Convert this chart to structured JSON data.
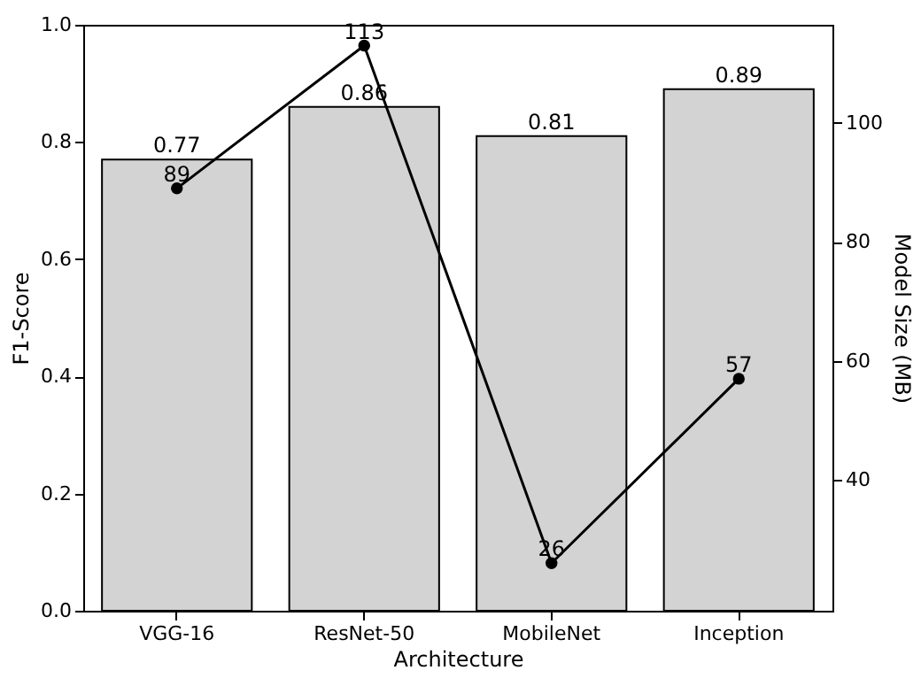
{
  "chart_data": {
    "type": "bar",
    "categories": [
      "VGG-16",
      "ResNet-50",
      "MobileNet",
      "Inception"
    ],
    "series": [
      {
        "color": "#d3d3d3",
        "values": [
          0.77,
          0.86,
          0.81,
          0.89
        ]
      },
      {
        "type": "line",
        "axis": "y2",
        "color": "#000000",
        "marker": "circle",
        "values": [
          89,
          113,
          26,
          57
        ]
      }
    ],
    "data_labels": true,
    "xlabel": "Architecture",
    "ylabel": "F1-Score",
    "y2label": "Model Size (MB)",
    "ylim": [
      0,
      1
    ],
    "yticks": [
      {
        "value": 0,
        "label": "0.0"
      },
      {
        "value": 0.2,
        "label": "0.2"
      },
      {
        "value": 0.4,
        "label": "0.4"
      },
      {
        "value": 0.6,
        "label": "0.6"
      },
      {
        "value": 0.8,
        "label": "0.8"
      },
      {
        "value": 1,
        "label": "1.0"
      }
    ],
    "y2lim": [
      18,
      116.5
    ],
    "y2ticks": [
      40,
      60,
      80,
      100
    ],
    "grid": false
  }
}
